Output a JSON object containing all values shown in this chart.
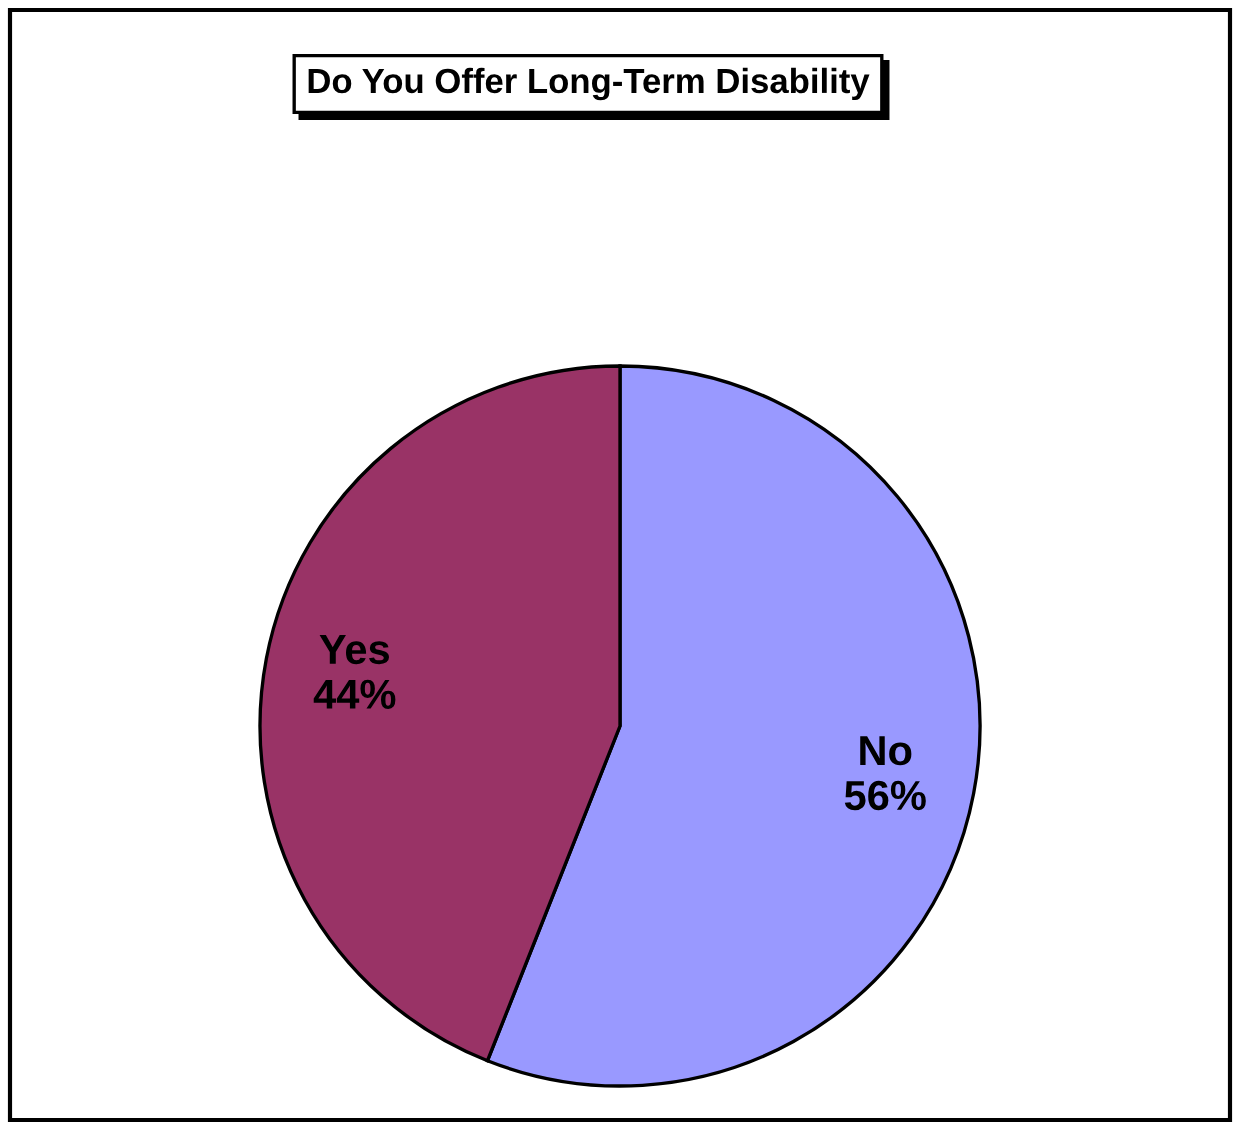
{
  "chart_data": {
    "type": "pie",
    "title": "Do You Offer Long-Term Disability",
    "categories": [
      "No",
      "Yes"
    ],
    "values": [
      56,
      44
    ],
    "colors": [
      "#9999ff",
      "#993366"
    ],
    "value_labels": [
      "56%",
      "44%"
    ]
  }
}
